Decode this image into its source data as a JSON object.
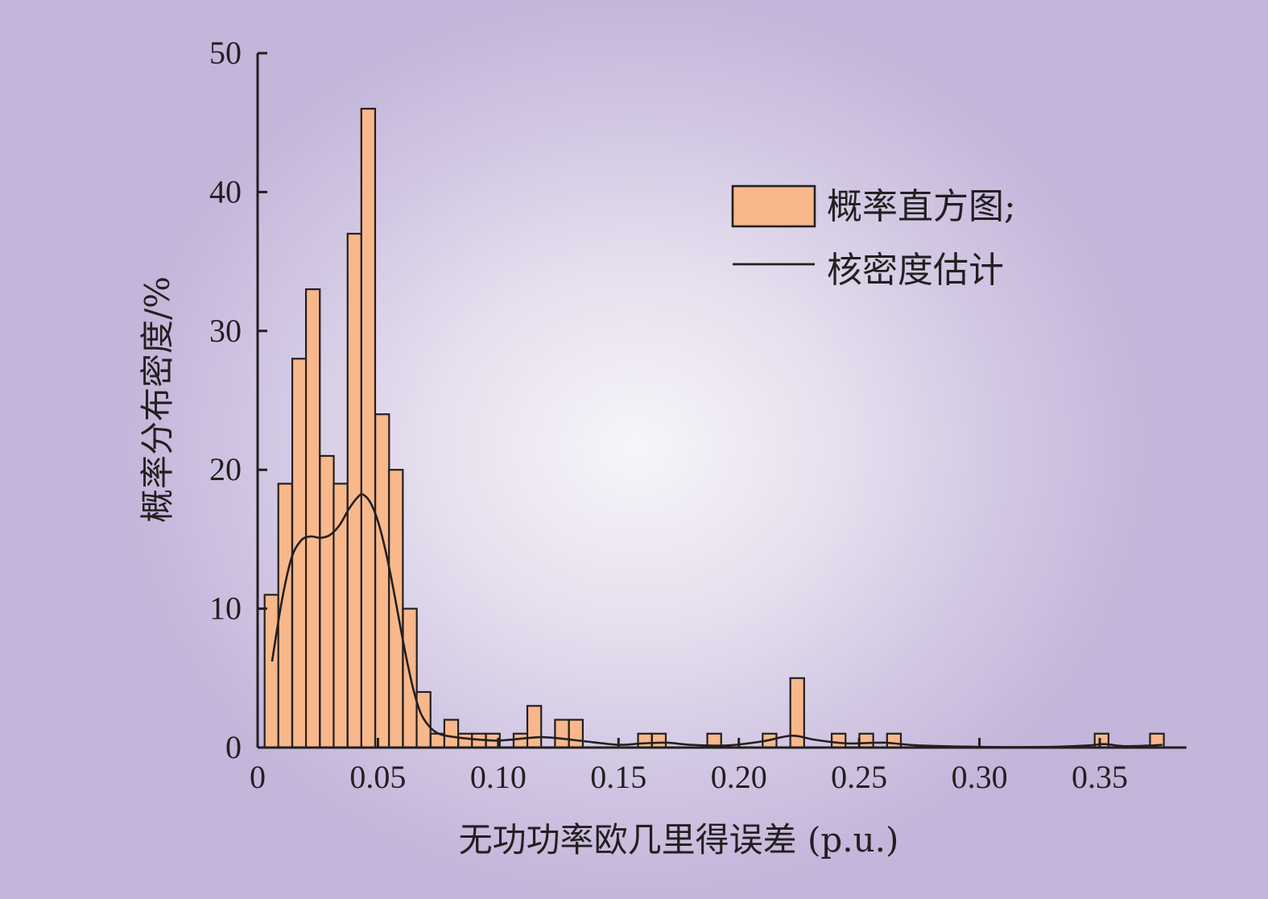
{
  "chart_data": {
    "type": "bar",
    "subtype": "histogram-with-density-line",
    "xlabel": "无功功率欧几里得误差 (p.u.)",
    "ylabel": "概率分布密度/%",
    "xlim": [
      0,
      0.38
    ],
    "ylim": [
      0,
      50
    ],
    "x_ticks": [
      {
        "value": 0,
        "label": "0"
      },
      {
        "value": 0.05,
        "label": "0.05"
      },
      {
        "value": 0.1,
        "label": "0.10"
      },
      {
        "value": 0.15,
        "label": "0.15"
      },
      {
        "value": 0.2,
        "label": "0.20"
      },
      {
        "value": 0.25,
        "label": "0.25"
      },
      {
        "value": 0.3,
        "label": "0.30"
      },
      {
        "value": 0.35,
        "label": "0.35"
      }
    ],
    "y_ticks": [
      {
        "value": 0,
        "label": "0"
      },
      {
        "value": 10,
        "label": "10"
      },
      {
        "value": 20,
        "label": "20"
      },
      {
        "value": 30,
        "label": "30"
      },
      {
        "value": 40,
        "label": "40"
      },
      {
        "value": 50,
        "label": "50"
      }
    ],
    "bin_width": 0.00575,
    "bins": [
      {
        "x0": 0.0029,
        "value": 11
      },
      {
        "x0": 0.0086,
        "value": 19
      },
      {
        "x0": 0.0144,
        "value": 28
      },
      {
        "x0": 0.0201,
        "value": 33
      },
      {
        "x0": 0.0259,
        "value": 21
      },
      {
        "x0": 0.0316,
        "value": 19
      },
      {
        "x0": 0.0374,
        "value": 37
      },
      {
        "x0": 0.0431,
        "value": 46
      },
      {
        "x0": 0.0489,
        "value": 24
      },
      {
        "x0": 0.0546,
        "value": 20
      },
      {
        "x0": 0.0604,
        "value": 10
      },
      {
        "x0": 0.0661,
        "value": 4
      },
      {
        "x0": 0.0719,
        "value": 1
      },
      {
        "x0": 0.0776,
        "value": 2
      },
      {
        "x0": 0.0834,
        "value": 1
      },
      {
        "x0": 0.0891,
        "value": 1
      },
      {
        "x0": 0.0949,
        "value": 1
      },
      {
        "x0": 0.1064,
        "value": 1
      },
      {
        "x0": 0.1121,
        "value": 3
      },
      {
        "x0": 0.1236,
        "value": 2
      },
      {
        "x0": 0.1294,
        "value": 2
      },
      {
        "x0": 0.1581,
        "value": 1
      },
      {
        "x0": 0.1639,
        "value": 1
      },
      {
        "x0": 0.1869,
        "value": 1
      },
      {
        "x0": 0.2099,
        "value": 1
      },
      {
        "x0": 0.2214,
        "value": 5
      },
      {
        "x0": 0.2386,
        "value": 1
      },
      {
        "x0": 0.2501,
        "value": 1
      },
      {
        "x0": 0.2616,
        "value": 1
      },
      {
        "x0": 0.3479,
        "value": 1
      },
      {
        "x0": 0.3709,
        "value": 1
      }
    ],
    "density_curve": {
      "name": "核密度估计",
      "points": [
        [
          0.006,
          6.2
        ],
        [
          0.01,
          10.5
        ],
        [
          0.014,
          13.6
        ],
        [
          0.018,
          14.9
        ],
        [
          0.022,
          15.2
        ],
        [
          0.026,
          15.1
        ],
        [
          0.03,
          15.3
        ],
        [
          0.034,
          16.0
        ],
        [
          0.038,
          17.2
        ],
        [
          0.042,
          18.1
        ],
        [
          0.044,
          18.2
        ],
        [
          0.047,
          17.6
        ],
        [
          0.05,
          16.3
        ],
        [
          0.053,
          14.3
        ],
        [
          0.056,
          11.8
        ],
        [
          0.059,
          9.0
        ],
        [
          0.062,
          6.3
        ],
        [
          0.065,
          4.0
        ],
        [
          0.068,
          2.4
        ],
        [
          0.072,
          1.4
        ],
        [
          0.076,
          0.95
        ],
        [
          0.082,
          0.75
        ],
        [
          0.09,
          0.6
        ],
        [
          0.1,
          0.5
        ],
        [
          0.11,
          0.65
        ],
        [
          0.118,
          0.75
        ],
        [
          0.126,
          0.65
        ],
        [
          0.136,
          0.45
        ],
        [
          0.15,
          0.2
        ],
        [
          0.16,
          0.3
        ],
        [
          0.17,
          0.35
        ],
        [
          0.18,
          0.2
        ],
        [
          0.195,
          0.15
        ],
        [
          0.21,
          0.45
        ],
        [
          0.222,
          0.85
        ],
        [
          0.232,
          0.55
        ],
        [
          0.245,
          0.3
        ],
        [
          0.26,
          0.35
        ],
        [
          0.275,
          0.15
        ],
        [
          0.3,
          0.05
        ],
        [
          0.33,
          0.05
        ],
        [
          0.345,
          0.15
        ],
        [
          0.352,
          0.25
        ],
        [
          0.36,
          0.1
        ],
        [
          0.372,
          0.15
        ],
        [
          0.376,
          0.2
        ]
      ]
    },
    "legend": {
      "position": "top-right",
      "entries": [
        {
          "label": "概率直方图;",
          "kind": "bar"
        },
        {
          "label": "核密度估计",
          "kind": "line"
        }
      ]
    },
    "colors": {
      "bar_fill": "#f8b88b",
      "bar_stroke": "#231f20",
      "line": "#231f20",
      "axis": "#231f20"
    },
    "grid": false
  }
}
